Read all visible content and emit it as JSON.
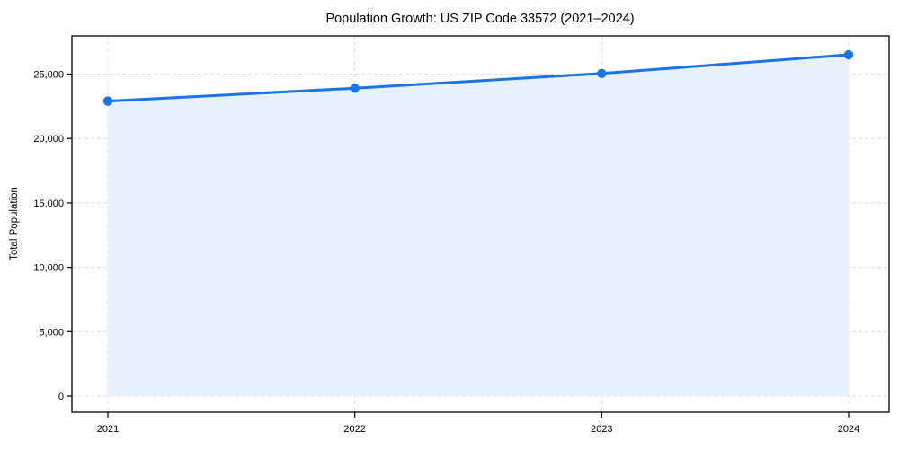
{
  "chart_data": {
    "type": "line",
    "title": "Population Growth: US ZIP Code 33572 (2021–2024)",
    "ylabel": "Total Population",
    "xlabel": "",
    "x": [
      "2021",
      "2022",
      "2023",
      "2024"
    ],
    "series": [
      {
        "name": "Total Population",
        "values": [
          22900,
          23900,
          25050,
          26500
        ]
      }
    ],
    "yticks": [
      0,
      5000,
      10000,
      15000,
      20000,
      25000
    ],
    "ytick_labels": [
      "0",
      "5,000",
      "10,000",
      "15,000",
      "20,000",
      "25,000"
    ],
    "ylim": [
      -1250,
      28000
    ],
    "grid": "dashed, horizontal and vertical",
    "legend": "none",
    "colors": {
      "line": "#1a73e8",
      "marker": "#1a73e8",
      "area_fill": "#e8f0fc",
      "gridline": "#dcdcdc",
      "spine": "#000000",
      "text": "#000000",
      "background": "#ffffff"
    },
    "marker_style": "filled-circle"
  }
}
